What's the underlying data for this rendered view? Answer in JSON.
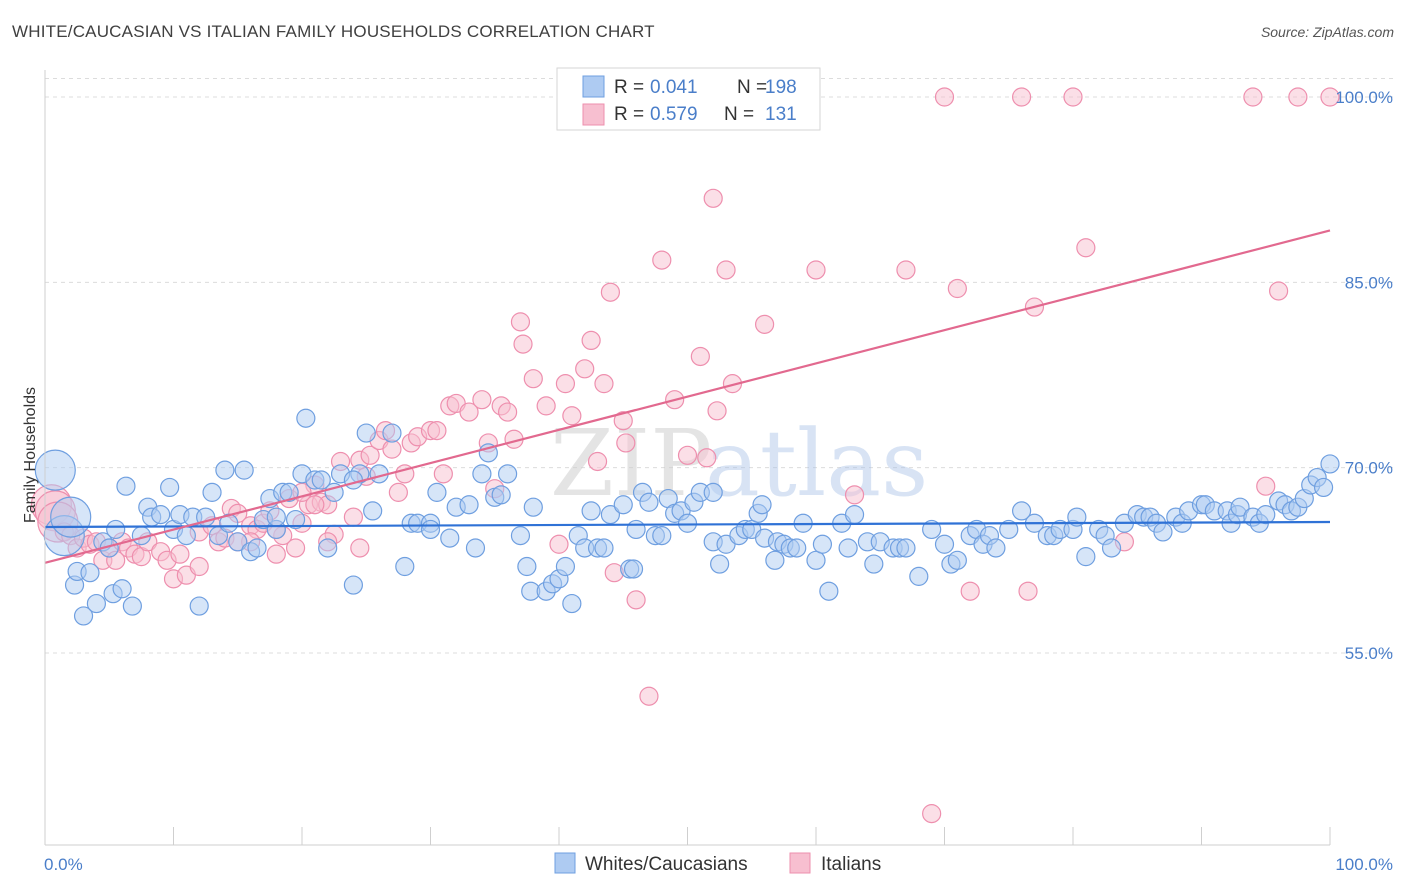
{
  "title": "WHITE/CAUCASIAN VS ITALIAN FAMILY HOUSEHOLDS CORRELATION CHART",
  "source": "Source: ZipAtlas.com",
  "watermark": {
    "zip": "ZIP",
    "atlas": "atlas"
  },
  "colors": {
    "blue_fill": "#aecbf2",
    "blue_stroke": "#6f9fe0",
    "blue_line": "#2f72d6",
    "pink_fill": "#f7bfd0",
    "pink_stroke": "#ee8fae",
    "pink_line": "#e2698f",
    "grid": "#dcdcdc",
    "tick_text": "#4a7ec9"
  },
  "chart_data": {
    "type": "scatter",
    "title": "WHITE/CAUCASIAN VS ITALIAN FAMILY HOUSEHOLDS CORRELATION CHART",
    "xlabel": "",
    "ylabel": "Family Households",
    "xlim": [
      0,
      100
    ],
    "ylim": [
      42,
      102
    ],
    "x_tick_labels": [
      "0.0%",
      "100.0%"
    ],
    "y_ticks": [
      55,
      70,
      85,
      100
    ],
    "y_tick_labels": [
      "55.0%",
      "70.0%",
      "85.0%",
      "100.0%"
    ],
    "grid": "horizontal dashed",
    "legend": {
      "placement": "top-center",
      "rows": [
        {
          "r_label": "R = ",
          "r_value": "0.041",
          "n_label": "N = ",
          "n_value": "198"
        },
        {
          "r_label": "R = ",
          "r_value": "0.579",
          "n_label": "N = ",
          "n_value": "131"
        }
      ]
    },
    "bottom_legend": [
      "Whites/Caucasians",
      "Italians"
    ],
    "series": [
      {
        "name": "Whites/Caucasians",
        "color": "#6f9fe0",
        "trend": [
          [
            0,
            65.2
          ],
          [
            100,
            65.6
          ]
        ],
        "points": [
          [
            0.8,
            69.8
          ],
          [
            1.5,
            64.5
          ],
          [
            2,
            66
          ],
          [
            2.3,
            60.5
          ],
          [
            2.5,
            61.6
          ],
          [
            3,
            58
          ],
          [
            3.5,
            61.5
          ],
          [
            4,
            59
          ],
          [
            4.5,
            64
          ],
          [
            5,
            63.5
          ],
          [
            5.3,
            59.8
          ],
          [
            5.5,
            65
          ],
          [
            6,
            60.2
          ],
          [
            6.3,
            68.5
          ],
          [
            6.8,
            58.8
          ],
          [
            7.5,
            64.5
          ],
          [
            8,
            66.8
          ],
          [
            8.3,
            66
          ],
          [
            9,
            66.2
          ],
          [
            9.7,
            68.4
          ],
          [
            10,
            65
          ],
          [
            10.5,
            66.2
          ],
          [
            11,
            64.5
          ],
          [
            11.5,
            66
          ],
          [
            12,
            58.8
          ],
          [
            12.5,
            66
          ],
          [
            13,
            68
          ],
          [
            13.5,
            64.5
          ],
          [
            14,
            69.8
          ],
          [
            14.3,
            65.5
          ],
          [
            15,
            64
          ],
          [
            15.5,
            69.8
          ],
          [
            16,
            63.2
          ],
          [
            16.5,
            63.5
          ],
          [
            17,
            65.8
          ],
          [
            17.5,
            67.5
          ],
          [
            18,
            65
          ],
          [
            18.5,
            68
          ],
          [
            19,
            68
          ],
          [
            19.5,
            65.8
          ],
          [
            20,
            69.5
          ],
          [
            20.3,
            74
          ],
          [
            21,
            69
          ],
          [
            21.5,
            69
          ],
          [
            22,
            63.5
          ],
          [
            22.5,
            68
          ],
          [
            23,
            69.5
          ],
          [
            24,
            60.5
          ],
          [
            24.5,
            69.5
          ],
          [
            25,
            72.8
          ],
          [
            25.5,
            66.5
          ],
          [
            26,
            69.5
          ],
          [
            27,
            72.8
          ],
          [
            28,
            62
          ],
          [
            28.5,
            65.5
          ],
          [
            29,
            65.5
          ],
          [
            30,
            65.5
          ],
          [
            30.5,
            68
          ],
          [
            31.5,
            64.3
          ],
          [
            32,
            66.8
          ],
          [
            33,
            67
          ],
          [
            33.5,
            63.5
          ],
          [
            34,
            69.5
          ],
          [
            34.5,
            71.2
          ],
          [
            35,
            67.6
          ],
          [
            35.5,
            67.8
          ],
          [
            36,
            69.5
          ],
          [
            37,
            64.5
          ],
          [
            37.5,
            62
          ],
          [
            37.8,
            60
          ],
          [
            38,
            66.8
          ],
          [
            39,
            60
          ],
          [
            39.5,
            60.6
          ],
          [
            40,
            61
          ],
          [
            40.5,
            62
          ],
          [
            41,
            59
          ],
          [
            41.5,
            64.5
          ],
          [
            42,
            63.5
          ],
          [
            42.5,
            66.5
          ],
          [
            43,
            63.5
          ],
          [
            43.5,
            63.5
          ],
          [
            44,
            66.2
          ],
          [
            45,
            67
          ],
          [
            45.5,
            61.8
          ],
          [
            45.8,
            61.8
          ],
          [
            46,
            65
          ],
          [
            46.5,
            68
          ],
          [
            47,
            67.2
          ],
          [
            47.5,
            64.5
          ],
          [
            48,
            64.5
          ],
          [
            48.5,
            67.5
          ],
          [
            49,
            66.3
          ],
          [
            49.5,
            66.5
          ],
          [
            50,
            65.5
          ],
          [
            50.5,
            67.2
          ],
          [
            51,
            68
          ],
          [
            52,
            64
          ],
          [
            52.5,
            62.2
          ],
          [
            53,
            63.8
          ],
          [
            54,
            64.5
          ],
          [
            54.5,
            65
          ],
          [
            55,
            65
          ],
          [
            55.5,
            66.3
          ],
          [
            55.8,
            67
          ],
          [
            56,
            64.3
          ],
          [
            56.8,
            62.5
          ],
          [
            57,
            64
          ],
          [
            57.5,
            63.8
          ],
          [
            58,
            63.5
          ],
          [
            58.5,
            63.5
          ],
          [
            59,
            65.5
          ],
          [
            60,
            62.5
          ],
          [
            60.5,
            63.8
          ],
          [
            61,
            60
          ],
          [
            62,
            65.5
          ],
          [
            62.5,
            63.5
          ],
          [
            63,
            66.2
          ],
          [
            64,
            64
          ],
          [
            64.5,
            62.2
          ],
          [
            65,
            64
          ],
          [
            66,
            63.5
          ],
          [
            66.5,
            63.5
          ],
          [
            67,
            63.5
          ],
          [
            68,
            61.2
          ],
          [
            69,
            65
          ],
          [
            70,
            63.8
          ],
          [
            70.5,
            62.2
          ],
          [
            71,
            62.5
          ],
          [
            72,
            64.5
          ],
          [
            72.5,
            65
          ],
          [
            73,
            63.8
          ],
          [
            73.5,
            64.5
          ],
          [
            74,
            63.5
          ],
          [
            75,
            65
          ],
          [
            76,
            66.5
          ],
          [
            77,
            65.5
          ],
          [
            78,
            64.5
          ],
          [
            78.5,
            64.5
          ],
          [
            79,
            65
          ],
          [
            80,
            65
          ],
          [
            80.3,
            66
          ],
          [
            81,
            62.8
          ],
          [
            82,
            65
          ],
          [
            82.5,
            64.5
          ],
          [
            83,
            63.5
          ],
          [
            84,
            65.5
          ],
          [
            85,
            66.2
          ],
          [
            85.5,
            66
          ],
          [
            86,
            66
          ],
          [
            86.5,
            65.5
          ],
          [
            87,
            64.8
          ],
          [
            88,
            66
          ],
          [
            88.5,
            65.5
          ],
          [
            89,
            66.5
          ],
          [
            90,
            67
          ],
          [
            90.3,
            67
          ],
          [
            91,
            66.5
          ],
          [
            92,
            66.5
          ],
          [
            92.3,
            65.5
          ],
          [
            92.8,
            66.2
          ],
          [
            93,
            66.8
          ],
          [
            94,
            66
          ],
          [
            94.5,
            65.5
          ],
          [
            95,
            66.2
          ],
          [
            96,
            67.3
          ],
          [
            96.5,
            67
          ],
          [
            97,
            66.5
          ],
          [
            97.5,
            66.8
          ],
          [
            98,
            67.5
          ],
          [
            98.5,
            68.6
          ],
          [
            99,
            69.2
          ],
          [
            99.5,
            68.4
          ],
          [
            100,
            70.3
          ],
          [
            52,
            68
          ],
          [
            24,
            69
          ],
          [
            18,
            66
          ],
          [
            30,
            65
          ]
        ]
      },
      {
        "name": "Italians",
        "color": "#ee8fae",
        "trend": [
          [
            0,
            62.3
          ],
          [
            100,
            89.2
          ]
        ],
        "points": [
          [
            0.5,
            67
          ],
          [
            0.8,
            66.5
          ],
          [
            1,
            65.6
          ],
          [
            1.5,
            64.8
          ],
          [
            2,
            64.5
          ],
          [
            2.5,
            63.5
          ],
          [
            3,
            64.3
          ],
          [
            3.5,
            63.8
          ],
          [
            4,
            64
          ],
          [
            4.5,
            62.5
          ],
          [
            5,
            63.5
          ],
          [
            5.5,
            62.5
          ],
          [
            6,
            64
          ],
          [
            6.5,
            63.5
          ],
          [
            7,
            63
          ],
          [
            7.5,
            62.8
          ],
          [
            8,
            64
          ],
          [
            9,
            63.2
          ],
          [
            9.5,
            62.5
          ],
          [
            10,
            61
          ],
          [
            10.5,
            63
          ],
          [
            11,
            61.3
          ],
          [
            12,
            64.8
          ],
          [
            13,
            65.3
          ],
          [
            13.5,
            64
          ],
          [
            14,
            64.3
          ],
          [
            14.5,
            66.7
          ],
          [
            15,
            66.3
          ],
          [
            16,
            65.3
          ],
          [
            16.5,
            65
          ],
          [
            17,
            65.5
          ],
          [
            17.5,
            66.5
          ],
          [
            18,
            63
          ],
          [
            18.5,
            64.5
          ],
          [
            19,
            67.5
          ],
          [
            19.5,
            63.5
          ],
          [
            20,
            65.5
          ],
          [
            20.5,
            67
          ],
          [
            21,
            68.6
          ],
          [
            21.5,
            67.2
          ],
          [
            22,
            67
          ],
          [
            22.5,
            64.6
          ],
          [
            23,
            70.5
          ],
          [
            24,
            66
          ],
          [
            24.5,
            70.6
          ],
          [
            25,
            69.3
          ],
          [
            25.3,
            71
          ],
          [
            26,
            72.2
          ],
          [
            26.5,
            73
          ],
          [
            27,
            71.5
          ],
          [
            27.5,
            68
          ],
          [
            28,
            69.5
          ],
          [
            28.5,
            72
          ],
          [
            29,
            72.5
          ],
          [
            30,
            73
          ],
          [
            30.5,
            73
          ],
          [
            31,
            69.5
          ],
          [
            31.5,
            75
          ],
          [
            32,
            75.2
          ],
          [
            33,
            74.5
          ],
          [
            34,
            75.5
          ],
          [
            34.5,
            72
          ],
          [
            35,
            68.3
          ],
          [
            35.5,
            75
          ],
          [
            36,
            74.5
          ],
          [
            36.5,
            72.3
          ],
          [
            37,
            81.8
          ],
          [
            37.2,
            80
          ],
          [
            38,
            77.2
          ],
          [
            39,
            75
          ],
          [
            40,
            63.8
          ],
          [
            40.5,
            76.8
          ],
          [
            41,
            74.2
          ],
          [
            42,
            78
          ],
          [
            42.5,
            80.3
          ],
          [
            43,
            70.5
          ],
          [
            43.5,
            76.8
          ],
          [
            44,
            84.2
          ],
          [
            44.3,
            61.5
          ],
          [
            45,
            73.8
          ],
          [
            45.2,
            72
          ],
          [
            46,
            59.3
          ],
          [
            47,
            51.5
          ],
          [
            48,
            86.8
          ],
          [
            49,
            75.5
          ],
          [
            50,
            71
          ],
          [
            51,
            79
          ],
          [
            51.5,
            70.8
          ],
          [
            52,
            91.8
          ],
          [
            52.3,
            74.6
          ],
          [
            53,
            86
          ],
          [
            53.5,
            76.8
          ],
          [
            54,
            100
          ],
          [
            56,
            81.6
          ],
          [
            60,
            86
          ],
          [
            63,
            67.8
          ],
          [
            67,
            86
          ],
          [
            69,
            42
          ],
          [
            70,
            100
          ],
          [
            71,
            84.5
          ],
          [
            72,
            60
          ],
          [
            76,
            100
          ],
          [
            76.5,
            60
          ],
          [
            77,
            83
          ],
          [
            80,
            100
          ],
          [
            81,
            87.8
          ],
          [
            84,
            64
          ],
          [
            94,
            100
          ],
          [
            95,
            68.5
          ],
          [
            96,
            84.3
          ],
          [
            97.5,
            100
          ],
          [
            100,
            100
          ],
          [
            24.5,
            63.5
          ],
          [
            21,
            67
          ],
          [
            20,
            68
          ],
          [
            22,
            64
          ],
          [
            16,
            64
          ],
          [
            18,
            65
          ],
          [
            15,
            64
          ],
          [
            12,
            62
          ]
        ]
      }
    ]
  }
}
